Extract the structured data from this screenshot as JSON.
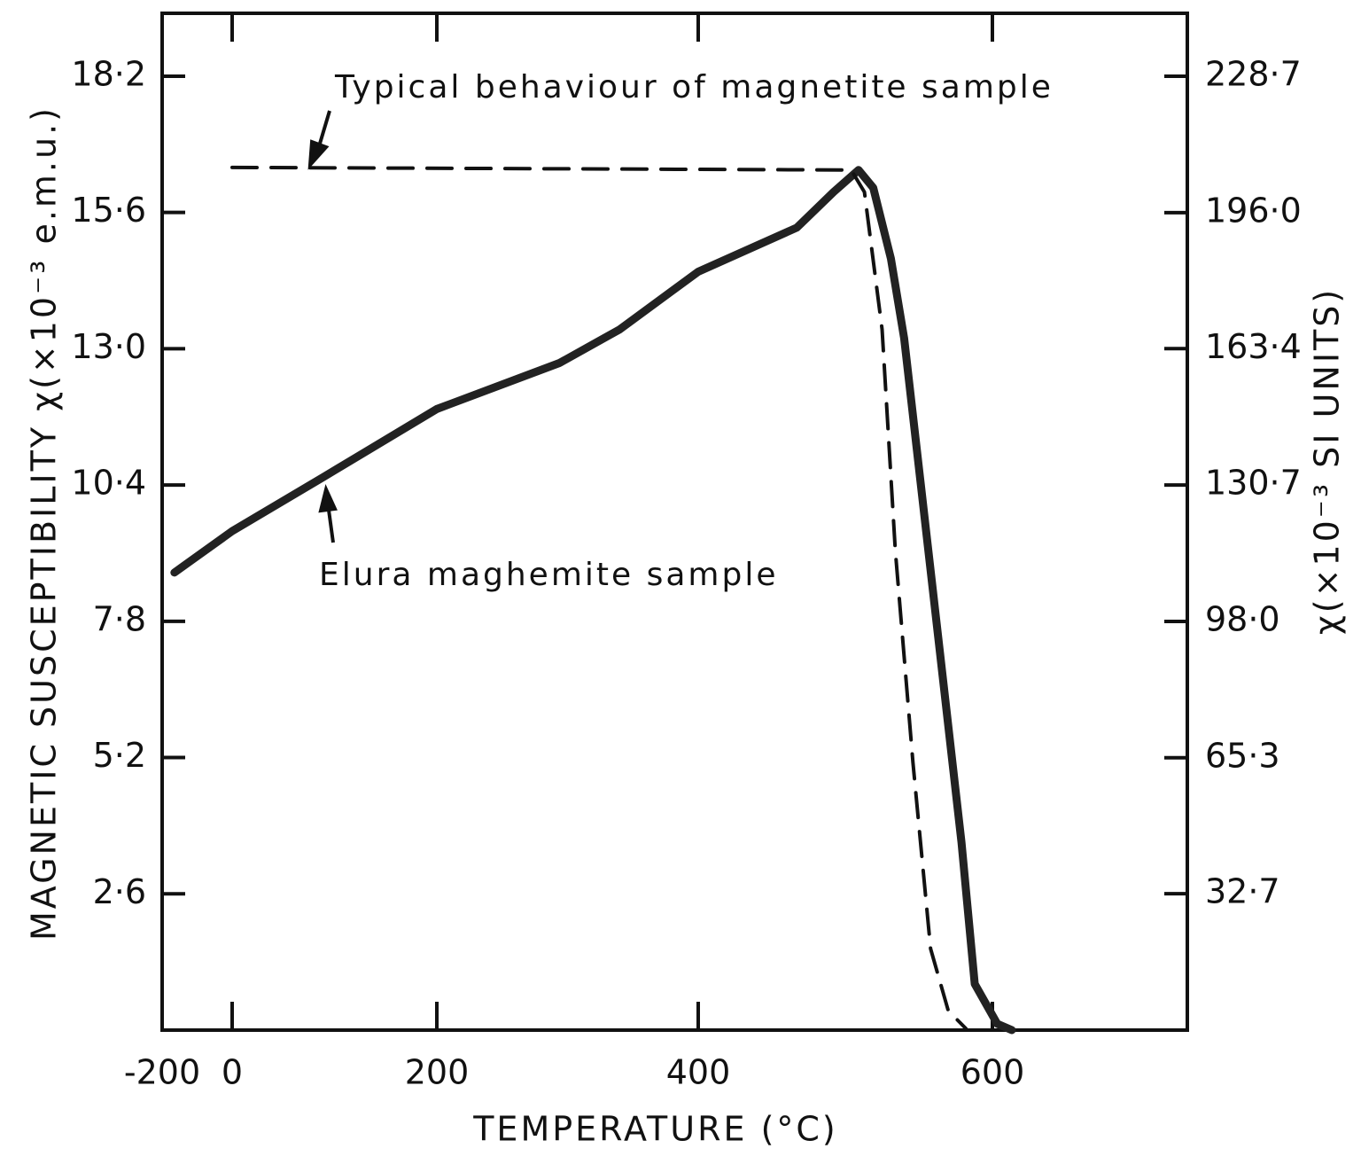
{
  "chart_data": {
    "type": "line",
    "xlabel": "TEMPERATURE (°C)",
    "ylabel": "MAGNETIC SUSCEPTIBILITY χ(×10⁻³ e.m.u.)",
    "y2label": "χ(×10⁻³ SI UNITS)",
    "xlim": [
      -200,
      720
    ],
    "xticks": [
      -200,
      0,
      200,
      400,
      600
    ],
    "ylim": [
      0,
      19.4
    ],
    "yticks": [
      {
        "value": 2.6,
        "label": "2·6"
      },
      {
        "value": 5.2,
        "label": "5·2"
      },
      {
        "value": 7.8,
        "label": "7·8"
      },
      {
        "value": 10.4,
        "label": "10·4"
      },
      {
        "value": 13.0,
        "label": "13·0"
      },
      {
        "value": 15.6,
        "label": "15·6"
      },
      {
        "value": 18.2,
        "label": "18·2"
      }
    ],
    "y2lim": [
      0,
      243.8
    ],
    "y2ticks": [
      {
        "value": 32.7,
        "label": "32·7"
      },
      {
        "value": 65.3,
        "label": "65·3"
      },
      {
        "value": 98.0,
        "label": "98·0"
      },
      {
        "value": 130.7,
        "label": "130·7"
      },
      {
        "value": 163.4,
        "label": "163·4"
      },
      {
        "value": 196.0,
        "label": "196·0"
      },
      {
        "value": 228.7,
        "label": "228·7"
      }
    ],
    "series": [
      {
        "color": "#222",
        "style": "solid",
        "x": [
          -165,
          0,
          89,
          200,
          294,
          340,
          400,
          467,
          492,
          509,
          519,
          531,
          540,
          564,
          579,
          588,
          603,
          612
        ],
        "values": [
          8.73,
          9.52,
          10.55,
          11.85,
          12.73,
          13.37,
          14.47,
          15.31,
          15.99,
          16.41,
          16.07,
          14.72,
          13.2,
          7.29,
          3.58,
          0.88,
          0.12,
          0
        ]
      },
      {
        "color": "#111",
        "style": "dashed",
        "x": [
          0,
          504,
          513,
          525,
          534,
          546,
          558,
          570,
          582
        ],
        "values": [
          16.46,
          16.41,
          15.99,
          13.37,
          9.15,
          5.1,
          1.55,
          0.37,
          0.03
        ]
      }
    ],
    "annotations": [
      {
        "text": "Typical behaviour of magnetite sample"
      },
      {
        "text": "Elura maghemite sample"
      }
    ]
  }
}
